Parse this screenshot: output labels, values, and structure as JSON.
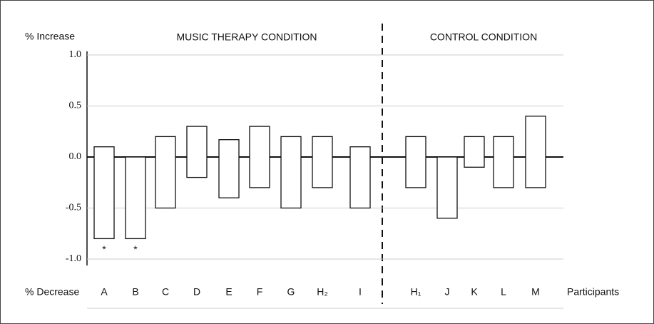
{
  "chart_data": {
    "type": "floating-bar",
    "y_label_top": "% Increase",
    "y_label_bottom": "% Decrease",
    "x_label": "Participants",
    "groups": [
      "MUSIC THERAPY CONDITION",
      "CONTROL CONDITION"
    ],
    "categories": [
      "A",
      "B",
      "C",
      "D",
      "E",
      "F",
      "G",
      "H₂",
      "I",
      "H₁",
      "J",
      "K",
      "L",
      "M"
    ],
    "low": [
      -0.8,
      -0.8,
      -0.5,
      -0.2,
      -0.4,
      -0.3,
      -0.5,
      -0.3,
      -0.5,
      -0.3,
      -0.6,
      -0.1,
      -0.3,
      -0.3
    ],
    "high": [
      0.1,
      0,
      0.2,
      0.3,
      0.17,
      0.3,
      0.2,
      0.2,
      0.1,
      0.2,
      0,
      0.2,
      0.2,
      0.4
    ],
    "notes": [
      "*",
      "*",
      null,
      null,
      null,
      null,
      null,
      null,
      null,
      null,
      null,
      null,
      null,
      null
    ],
    "ylim": [
      -1,
      1
    ],
    "yticks": [
      {
        "value": 1,
        "label": "1.0"
      },
      0.5,
      {
        "value": 0,
        "label": "0.0"
      },
      -0.5,
      {
        "value": -1,
        "label": "-1.0"
      }
    ],
    "grid": true,
    "color": "#ffffff"
  }
}
